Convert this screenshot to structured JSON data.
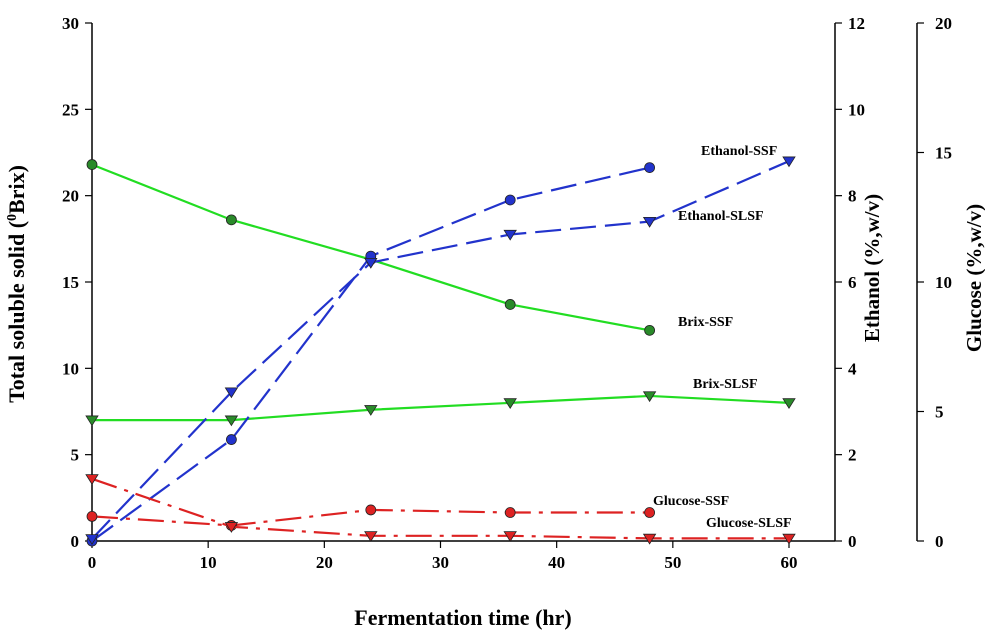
{
  "chart_data": {
    "type": "line",
    "xlabel": "Fermentation time (hr)",
    "x_ticks": [
      "0",
      "10",
      "20",
      "30",
      "40",
      "50",
      "60"
    ],
    "xlim": [
      0,
      60
    ],
    "y_axes": {
      "brix": {
        "label_main": "Total soluble solid (",
        "label_sup": "0",
        "label_end": "Brix)",
        "ylim": [
          0,
          30
        ],
        "ticks": [
          "0",
          "5",
          "10",
          "15",
          "20",
          "25",
          "30"
        ]
      },
      "ethanol": {
        "label": "Ethanol (%,w/v)",
        "ylim": [
          0,
          12
        ],
        "ticks": [
          "0",
          "2",
          "4",
          "6",
          "8",
          "10",
          "12"
        ]
      },
      "glucose": {
        "label": "Glucose (%,w/v)",
        "ylim": [
          0,
          20
        ],
        "ticks": [
          "0",
          "5",
          "10",
          "15",
          "20"
        ]
      }
    },
    "series": [
      {
        "name": "Brix-SSF",
        "axis": "brix",
        "marker": "circle",
        "line": "solid",
        "color": "#22dd22",
        "marker_color": "#2a8a2a",
        "x": [
          0,
          12,
          24,
          36,
          48
        ],
        "y": [
          21.8,
          18.6,
          16.3,
          13.7,
          12.2
        ]
      },
      {
        "name": "Brix-SLSF",
        "axis": "brix",
        "marker": "triangle-down",
        "line": "solid",
        "color": "#22dd22",
        "marker_color": "#2a8a2a",
        "x": [
          0,
          12,
          24,
          36,
          48,
          60
        ],
        "y": [
          7.0,
          7.0,
          7.6,
          8.0,
          8.4,
          8.0
        ]
      },
      {
        "name": "Ethanol-SSF",
        "axis": "ethanol",
        "marker": "circle",
        "line": "dashed",
        "color": "#2233cc",
        "marker_color": "#2233cc",
        "x": [
          0,
          12,
          24,
          36,
          48
        ],
        "y": [
          0.0,
          2.35,
          6.6,
          7.9,
          8.65
        ]
      },
      {
        "name": "Ethanol-SLSF",
        "axis": "ethanol",
        "marker": "triangle-down",
        "line": "dashed",
        "color": "#2233cc",
        "marker_color": "#2233cc",
        "x": [
          0,
          12,
          24,
          36,
          48,
          60
        ],
        "y": [
          0.05,
          3.45,
          6.45,
          7.1,
          7.4,
          8.8
        ]
      },
      {
        "name": "Glucose-SSF",
        "axis": "glucose",
        "marker": "circle",
        "line": "dashdot",
        "color": "#dd2222",
        "marker_color": "#dd2222",
        "x": [
          0,
          12,
          24,
          36,
          48
        ],
        "y": [
          0.95,
          0.6,
          1.2,
          1.1,
          1.1
        ]
      },
      {
        "name": "Glucose-SLSF",
        "axis": "glucose",
        "marker": "triangle-down",
        "line": "dashdot",
        "color": "#dd2222",
        "marker_color": "#dd2222",
        "x": [
          0,
          12,
          24,
          36,
          48,
          60
        ],
        "y": [
          2.4,
          0.55,
          0.2,
          0.2,
          0.1,
          0.1
        ]
      }
    ],
    "legend": "inline labels near series ends",
    "grid": false
  }
}
